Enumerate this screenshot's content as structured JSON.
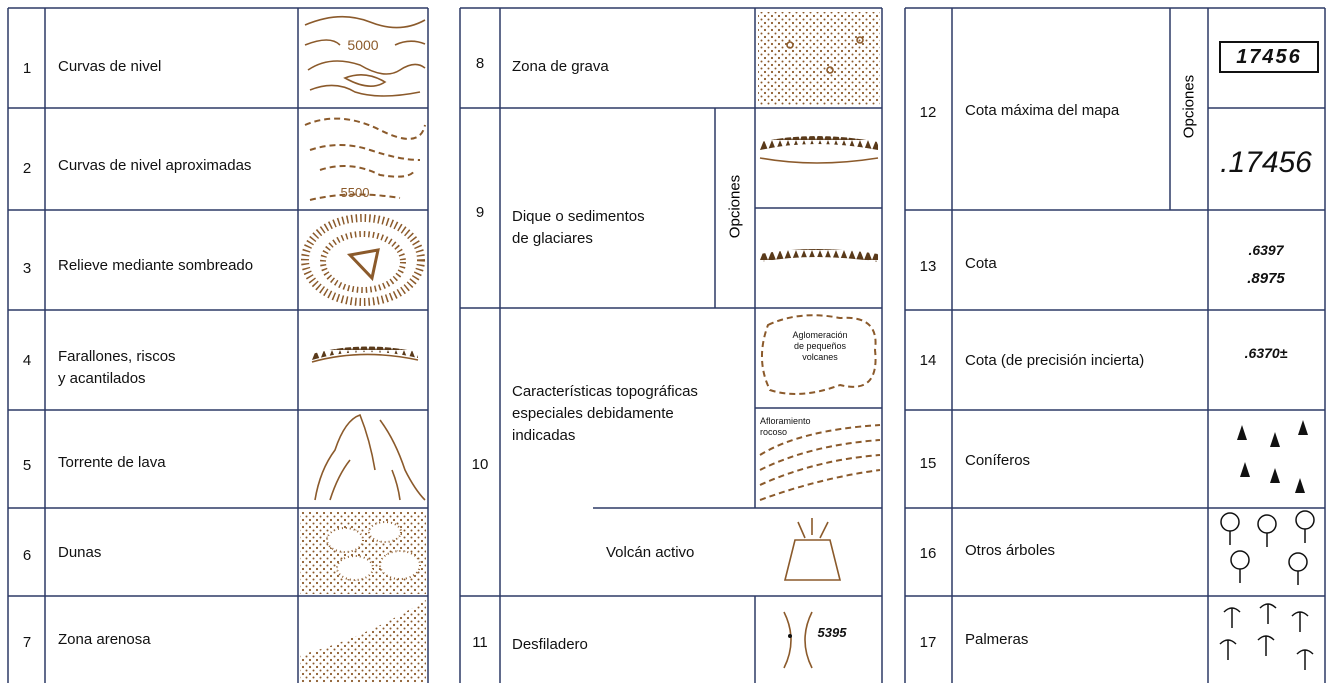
{
  "left": {
    "rows": [
      {
        "number": "1",
        "label": "Curvas de nivel",
        "symbol_text": "5000"
      },
      {
        "number": "2",
        "label": "Curvas de nivel aproximadas",
        "symbol_text": "5500"
      },
      {
        "number": "3",
        "label": "Relieve mediante sombreado"
      },
      {
        "number": "4",
        "label": "Farallones, riscos\n   y acantilados"
      },
      {
        "number": "5",
        "label": "Torrente de lava"
      },
      {
        "number": "6",
        "label": "Dunas"
      },
      {
        "number": "7",
        "label": "Zona arenosa"
      }
    ]
  },
  "middle": {
    "rows": [
      {
        "number": "8",
        "label": "Zona de grava"
      },
      {
        "number": "9",
        "label": "Dique o sedimentos\n   de glaciares",
        "options": "Opciones"
      },
      {
        "number": "10",
        "label": "Características topográficas\n   especiales debidamente\n   indicadas",
        "symbol_texts": [
          "Aglomeración\nde pequeños\nvolcanes",
          "Afloramiento\nrocoso"
        ],
        "sub_label": "Volcán activo"
      },
      {
        "number": "11",
        "label": "Desfiladero",
        "symbol_text": "5395"
      }
    ]
  },
  "right": {
    "rows": [
      {
        "number": "12",
        "label": "Cota máxima del mapa",
        "options": "Opciones",
        "symbol_texts": [
          "17456",
          ".17456"
        ]
      },
      {
        "number": "13",
        "label": "Cota",
        "symbol_texts": [
          ".6397",
          ".8975"
        ]
      },
      {
        "number": "14",
        "label": "Cota (de precisión incierta)",
        "symbol_text": ".6370±"
      },
      {
        "number": "15",
        "label": "Coníferos"
      },
      {
        "number": "16",
        "label": "Otros árboles"
      },
      {
        "number": "17",
        "label": "Palmeras"
      }
    ]
  }
}
